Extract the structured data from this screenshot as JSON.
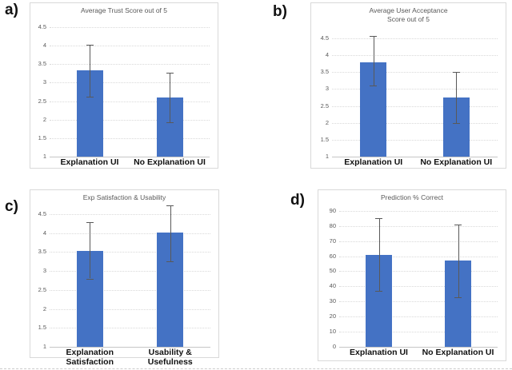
{
  "figure": {
    "background": "#ffffff",
    "panels": [
      {
        "id": "a",
        "label": "a)"
      },
      {
        "id": "b",
        "label": "b)"
      },
      {
        "id": "c",
        "label": "c)"
      },
      {
        "id": "d",
        "label": "d)"
      }
    ]
  },
  "colors": {
    "bar_fill": "#4472C4",
    "error_bar": "#595959",
    "gridline": "#D9D9D9",
    "panel_border": "#D9D9D9",
    "title_text": "#595959",
    "tick_text": "#595959",
    "category_text": "#111111"
  },
  "chart_data": [
    {
      "id": "a",
      "type": "bar",
      "title": "Average Trust Score out of 5",
      "title_lines": [
        "Average Trust Score out of 5"
      ],
      "categories": [
        "Explanation UI",
        "No Explanation UI"
      ],
      "category_lines": [
        [
          "Explanation UI"
        ],
        [
          "No Explanation UI"
        ]
      ],
      "values": [
        3.33,
        2.6
      ],
      "error_low": [
        2.63,
        1.93
      ],
      "error_high": [
        4.03,
        3.28
      ],
      "ylim": [
        1,
        4.61
      ],
      "yticks": [
        1,
        1.5,
        2,
        2.5,
        3,
        3.5,
        4,
        4.5
      ],
      "grid": true,
      "legend": null,
      "xlabel": "",
      "ylabel": ""
    },
    {
      "id": "b",
      "type": "bar",
      "title": "Average User Acceptance Score out of 5",
      "title_lines": [
        "Average User Acceptance",
        "Score out of 5"
      ],
      "categories": [
        "Explanation UI",
        "No Explanation UI"
      ],
      "category_lines": [
        [
          "Explanation UI"
        ],
        [
          "No Explanation UI"
        ]
      ],
      "values": [
        3.8,
        2.75
      ],
      "error_low": [
        3.1,
        2.0
      ],
      "error_high": [
        4.57,
        3.5
      ],
      "ylim": [
        1,
        4.64
      ],
      "yticks": [
        1,
        1.5,
        2,
        2.5,
        3,
        3.5,
        4,
        4.5
      ],
      "grid": true,
      "legend": null,
      "xlabel": "",
      "ylabel": ""
    },
    {
      "id": "c",
      "type": "bar",
      "title": "Exp Satisfaction & Usability",
      "title_lines": [
        "Exp Satisfaction & Usability"
      ],
      "categories": [
        "Explanation Satisfaction",
        "Usability & Usefulness"
      ],
      "category_lines": [
        [
          "Explanation",
          "Satisfaction"
        ],
        [
          "Usability &",
          "Usefulness"
        ]
      ],
      "values": [
        3.52,
        4.02
      ],
      "error_low": [
        2.8,
        3.26
      ],
      "error_high": [
        4.28,
        4.73
      ],
      "ylim": [
        1,
        4.6
      ],
      "yticks": [
        1,
        1.5,
        2,
        2.5,
        3,
        3.5,
        4,
        4.5
      ],
      "grid": true,
      "legend": null,
      "xlabel": "",
      "ylabel": ""
    },
    {
      "id": "d",
      "type": "bar",
      "title": "Prediction % Correct",
      "title_lines": [
        "Prediction % Correct"
      ],
      "categories": [
        "Explanation UI",
        "No Explanation UI"
      ],
      "category_lines": [
        [
          "Explanation UI"
        ],
        [
          "No Explanation UI"
        ]
      ],
      "values": [
        61,
        57
      ],
      "error_low": [
        37,
        33
      ],
      "error_high": [
        85,
        81
      ],
      "ylim": [
        0,
        92
      ],
      "yticks": [
        0,
        10,
        20,
        30,
        40,
        50,
        60,
        70,
        80,
        90
      ],
      "grid": true,
      "legend": null,
      "xlabel": "",
      "ylabel": ""
    }
  ]
}
